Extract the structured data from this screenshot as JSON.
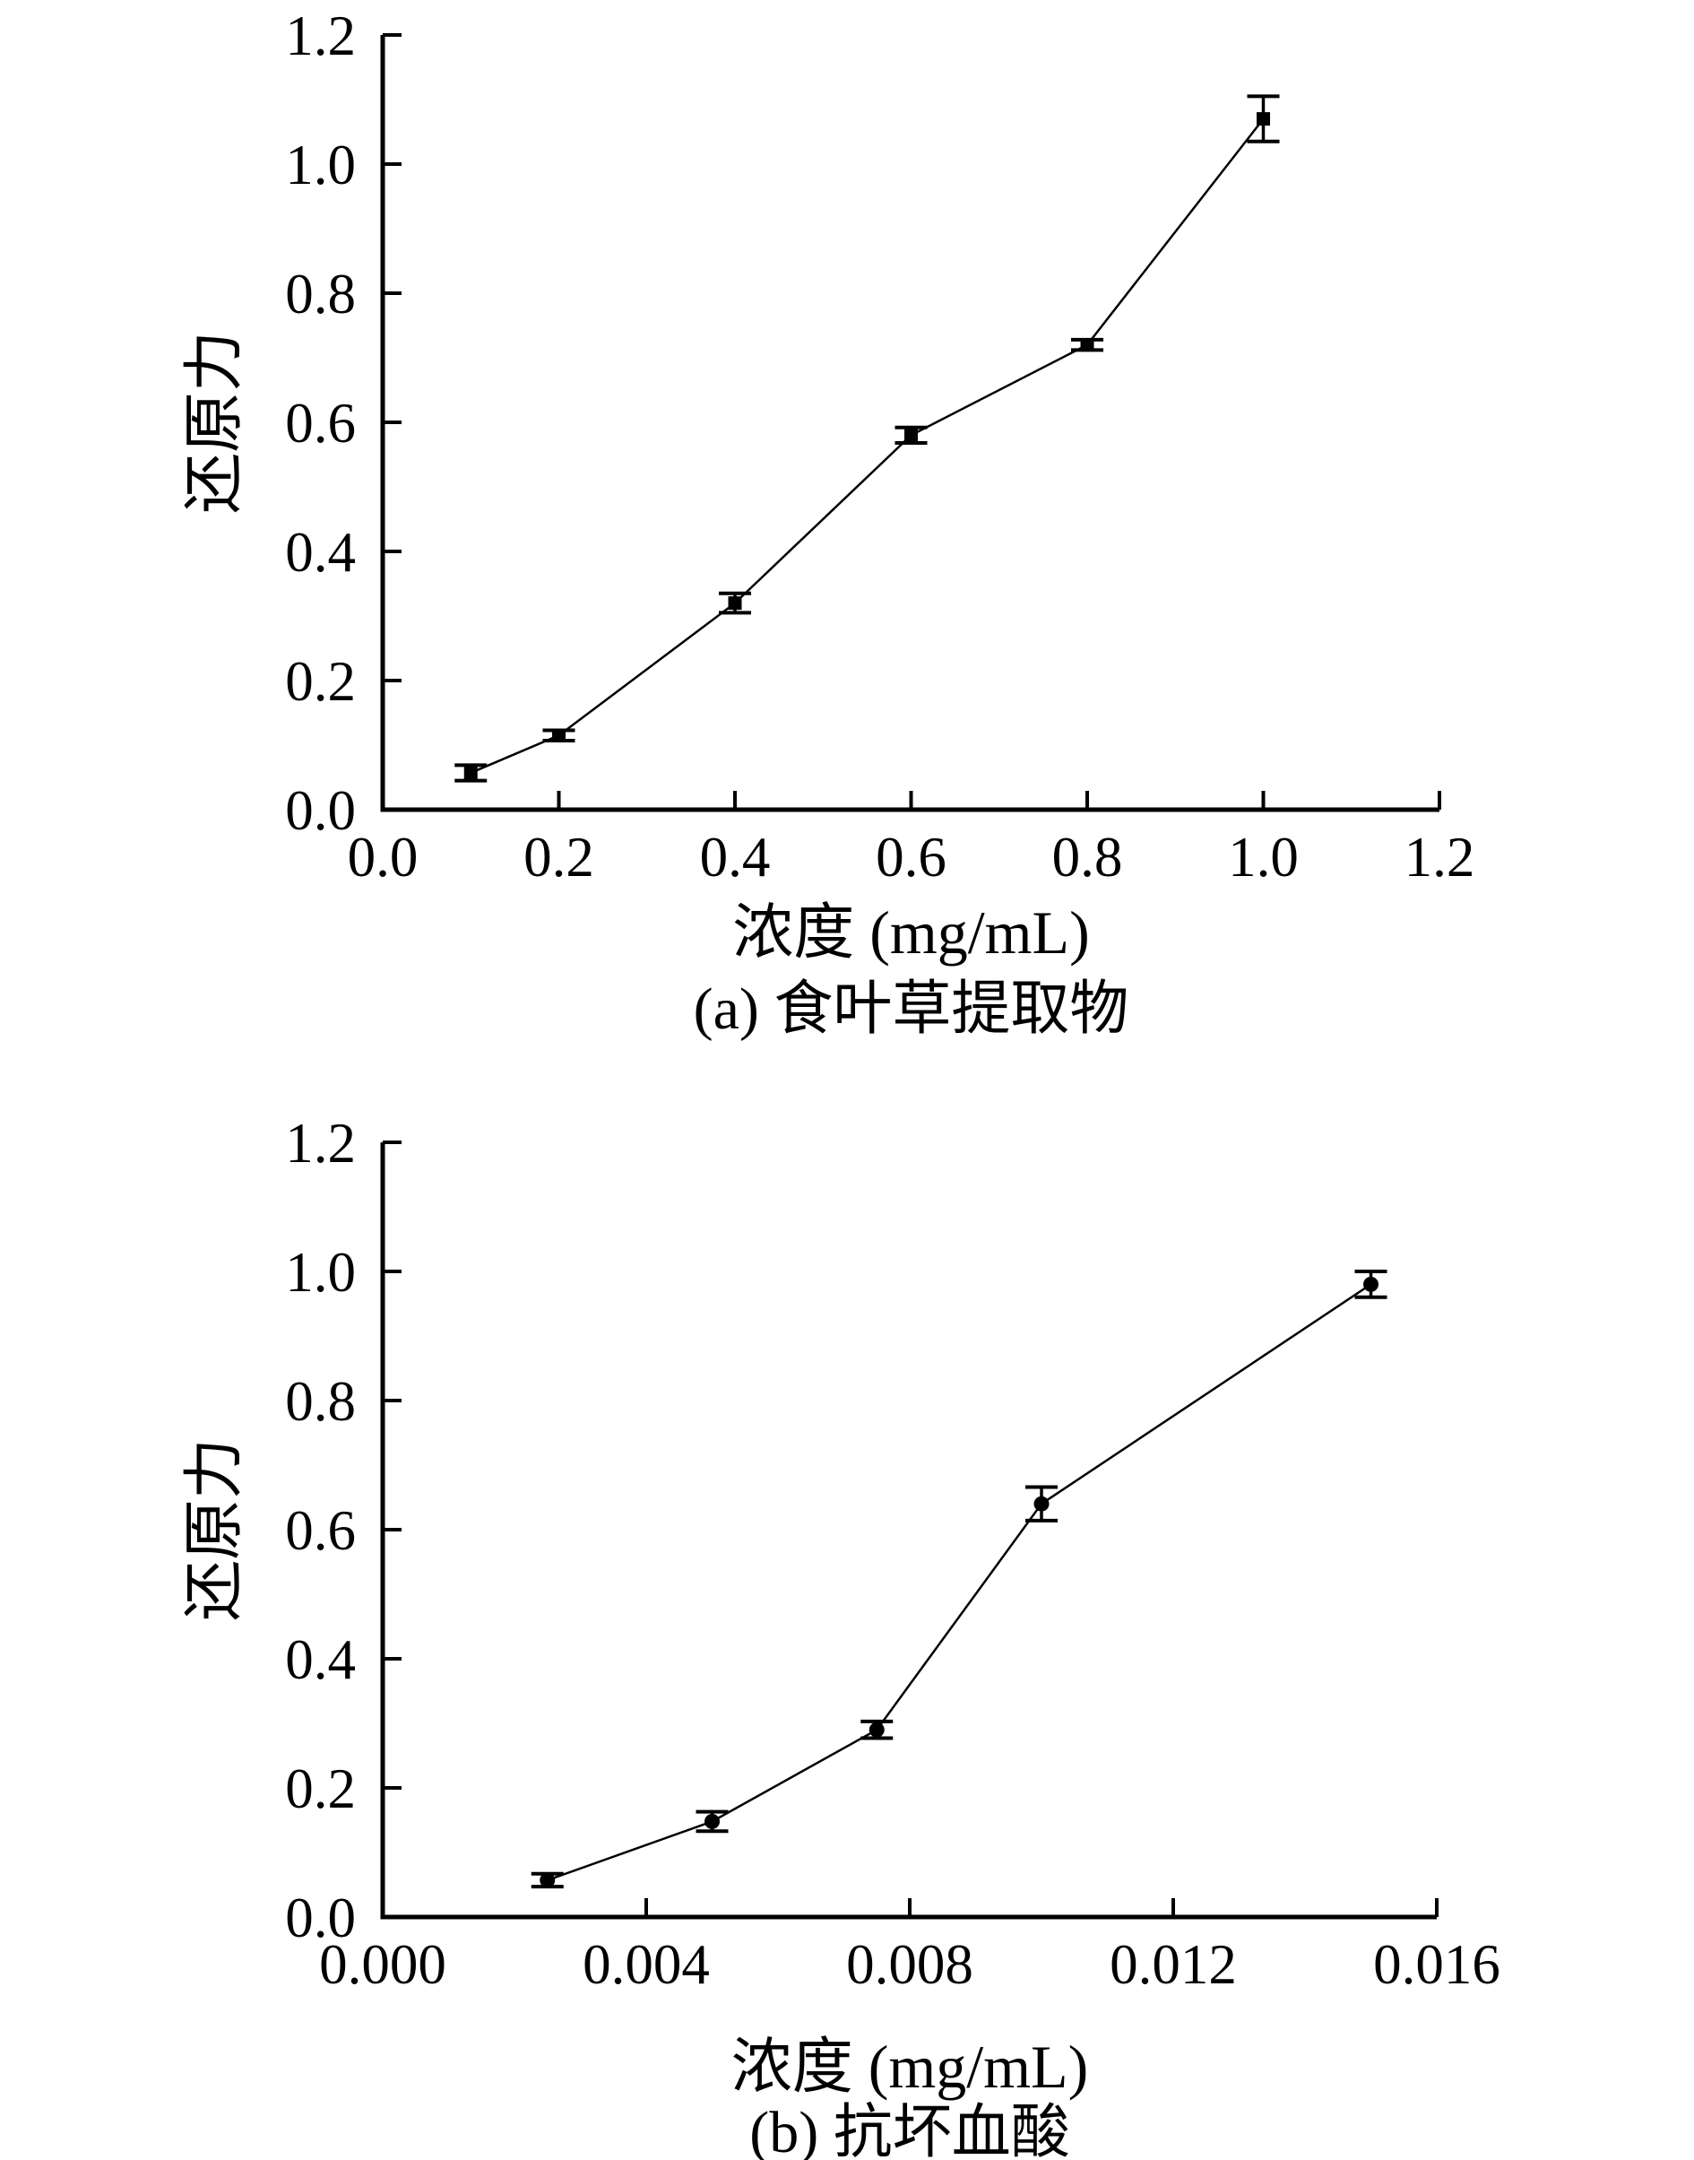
{
  "figure": {
    "background": "#ffffff",
    "ink": "#000000"
  },
  "chart_data": [
    {
      "id": "a",
      "type": "line",
      "caption": "(a) 食叶草提取物",
      "xlabel": "浓度 (mg/mL)",
      "ylabel": "还原力",
      "xlim": [
        0,
        1.2
      ],
      "ylim": [
        0,
        1.2
      ],
      "grid": false,
      "legend": "none",
      "marker": "square",
      "xticks": {
        "values": [
          0,
          0.2,
          0.4,
          0.6,
          0.8,
          1.0,
          1.2
        ],
        "labels": [
          "0.0",
          "0.2",
          "0.4",
          "0.6",
          "0.8",
          "1.0",
          "1.2"
        ]
      },
      "yticks": {
        "values": [
          0,
          0.2,
          0.4,
          0.6,
          0.8,
          1.0,
          1.2
        ],
        "labels": [
          "0.0",
          "0.2",
          "0.4",
          "0.6",
          "0.8",
          "1.0",
          "1.2"
        ]
      },
      "series": [
        {
          "name": "食叶草提取物",
          "x": [
            0.1,
            0.2,
            0.4,
            0.6,
            0.8,
            1.0
          ],
          "y": [
            0.057,
            0.115,
            0.32,
            0.58,
            0.72,
            1.07
          ],
          "yerr": [
            0.012,
            0.008,
            0.015,
            0.012,
            0.008,
            0.035
          ]
        }
      ]
    },
    {
      "id": "b",
      "type": "line",
      "caption": "(b) 抗坏血酸",
      "xlabel": "浓度 (mg/mL)",
      "ylabel": "还原力",
      "xlim": [
        0,
        0.016
      ],
      "ylim": [
        0,
        1.2
      ],
      "grid": false,
      "legend": "none",
      "marker": "circle",
      "xticks": {
        "values": [
          0,
          0.004,
          0.008,
          0.012,
          0.016
        ],
        "labels": [
          "0.000",
          "0.004",
          "0.008",
          "0.012",
          "0.016"
        ]
      },
      "yticks": {
        "values": [
          0,
          0.2,
          0.4,
          0.6,
          0.8,
          1.0,
          1.2
        ],
        "labels": [
          "0.0",
          "0.2",
          "0.4",
          "0.6",
          "0.8",
          "1.0",
          "1.2"
        ]
      },
      "series": [
        {
          "name": "抗坏血酸",
          "x": [
            0.0025,
            0.005,
            0.0075,
            0.01,
            0.015
          ],
          "y": [
            0.057,
            0.148,
            0.29,
            0.64,
            0.98
          ],
          "yerr": [
            0.01,
            0.015,
            0.013,
            0.026,
            0.02
          ]
        }
      ]
    }
  ]
}
